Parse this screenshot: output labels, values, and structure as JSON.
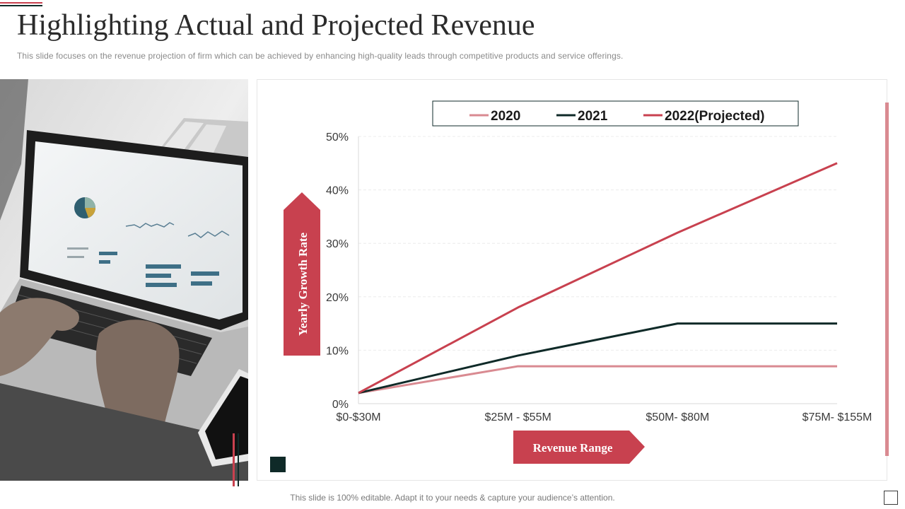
{
  "header": {
    "title": "Highlighting Actual and Projected Revenue",
    "subtitle": "This slide focuses on the revenue  projection of firm which can be achieved by enhancing high-quality leads through competitive products and service offerings."
  },
  "footer": {
    "note": "This slide is 100% editable. Adapt it to your needs & capture your audience’s attention."
  },
  "colors": {
    "accent": "#c8414f",
    "accent_light": "#d98a91",
    "dark": "#0f2a28",
    "text": "#2b2b2b"
  },
  "photo": {
    "icon": "laptop-photo-icon"
  },
  "chart_data": {
    "type": "line",
    "title": "",
    "xlabel": "Revenue Range",
    "ylabel": "Yearly Growth Rate",
    "categories": [
      "$0-$30M",
      "$25M - $55M",
      "$50M- $80M",
      "$75M- $155M"
    ],
    "y_ticks": [
      "0%",
      "10%",
      "20%",
      "30%",
      "40%",
      "50%"
    ],
    "ylim": [
      0,
      50
    ],
    "grid": true,
    "legend_position": "top",
    "series": [
      {
        "name": "2020",
        "color": "#d98a91",
        "values": [
          2,
          7,
          7,
          7
        ]
      },
      {
        "name": "2021",
        "color": "#0f2a28",
        "values": [
          2,
          9,
          15,
          15
        ]
      },
      {
        "name": "2022(Projected)",
        "color": "#c8414f",
        "values": [
          2,
          18,
          32,
          45
        ]
      }
    ]
  }
}
